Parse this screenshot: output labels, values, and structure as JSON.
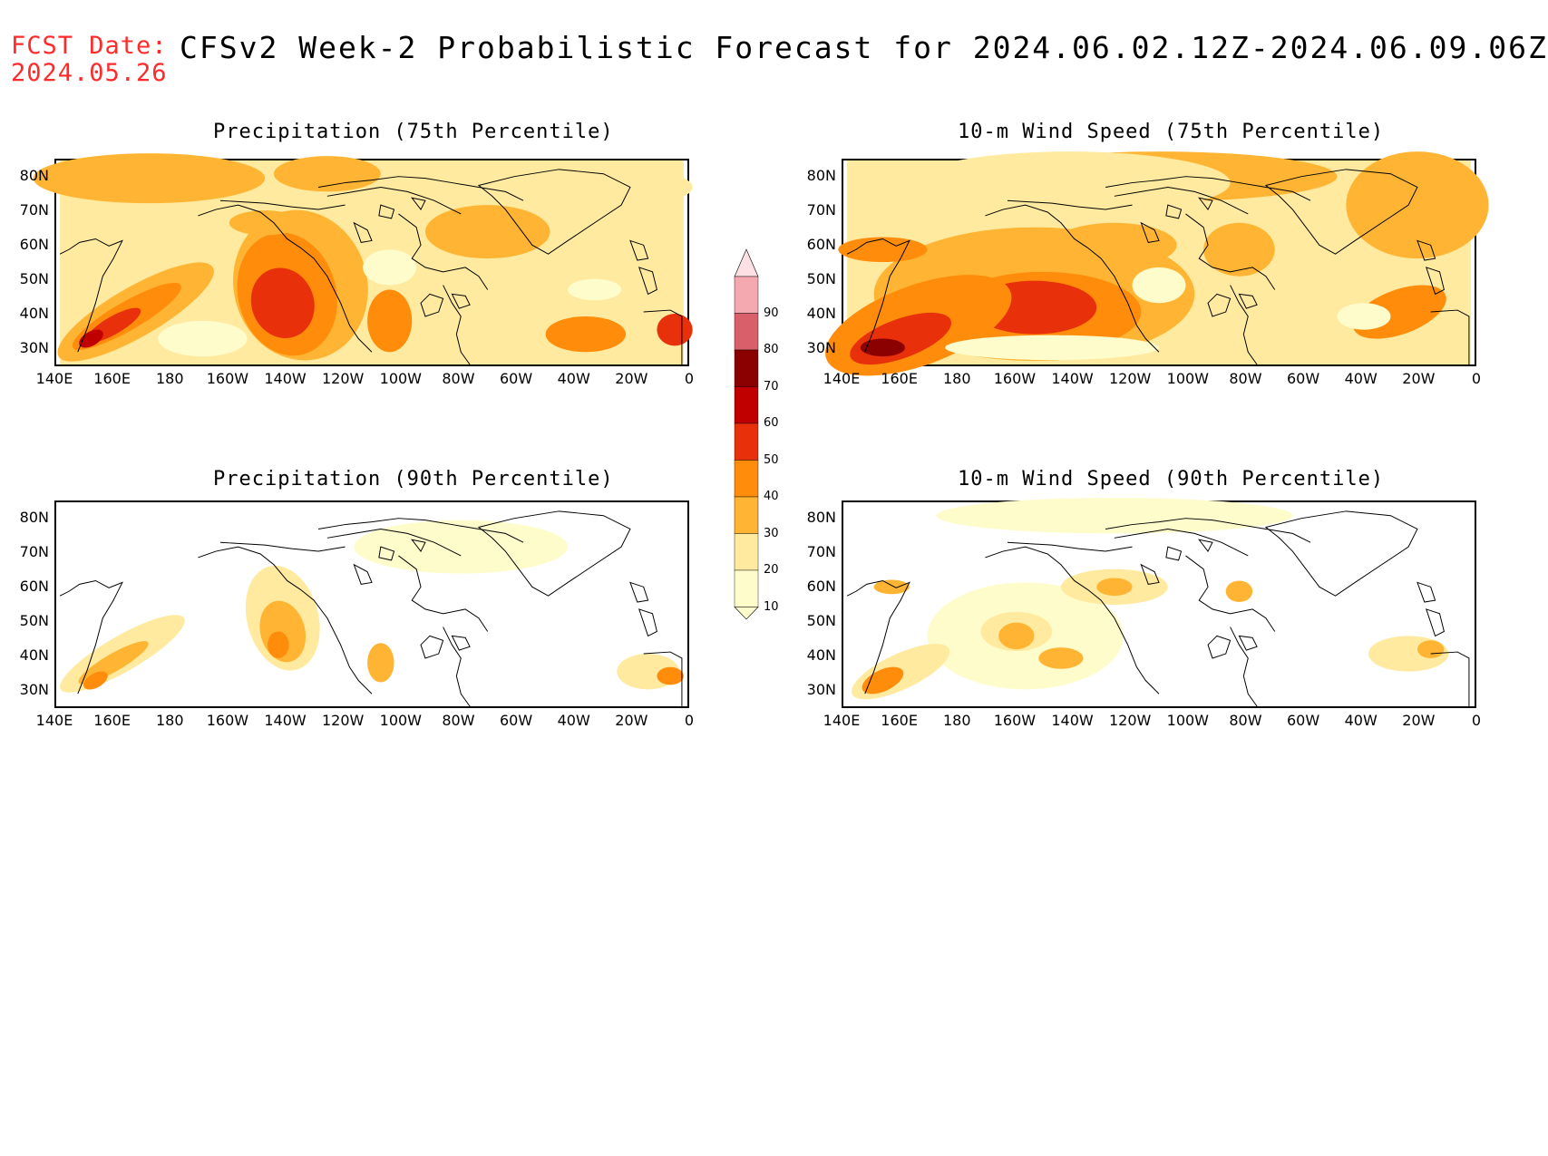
{
  "header": {
    "fcst_label": "FCST Date:",
    "fcst_date": "2024.05.26",
    "title": "CFSv2 Week-2 Probabilistic Forecast for 2024.06.02.12Z-2024.06.09.06Z"
  },
  "panels": [
    {
      "id": "precip-75",
      "title": "Precipitation (75th Percentile)"
    },
    {
      "id": "wind-75",
      "title": "10-m Wind Speed (75th Percentile)"
    },
    {
      "id": "precip-90",
      "title": "Precipitation (90th Percentile)"
    },
    {
      "id": "wind-90",
      "title": "10-m Wind Speed (90th Percentile)"
    }
  ],
  "axes": {
    "lat_labels": [
      "80N",
      "70N",
      "60N",
      "50N",
      "40N",
      "30N"
    ],
    "lon_labels": [
      "140E",
      "160E",
      "180",
      "160W",
      "140W",
      "120W",
      "100W",
      "80W",
      "60W",
      "40W",
      "20W",
      "0"
    ]
  },
  "colorbar": {
    "levels": [
      "10",
      "20",
      "30",
      "40",
      "50",
      "60",
      "70",
      "80",
      "90"
    ],
    "colors": [
      "#fffccc",
      "#ffeaa0",
      "#ffb533",
      "#ff8c0a",
      "#e8300a",
      "#c00000",
      "#8b0000",
      "#d9606a",
      "#f4a8b0",
      "#fde0e4"
    ]
  },
  "map_colors": {
    "land_outline": "#000000",
    "background": "#ffffff"
  }
}
